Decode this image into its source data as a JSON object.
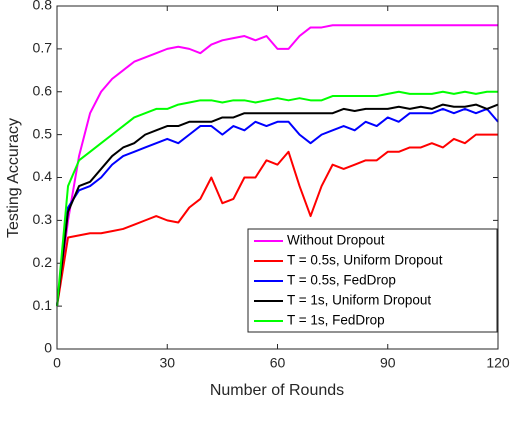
{
  "chart_data": {
    "type": "line",
    "xlabel": "Number of Rounds",
    "ylabel": "Testing Accuracy",
    "x": [
      0,
      3,
      6,
      9,
      12,
      15,
      18,
      21,
      24,
      27,
      30,
      33,
      36,
      39,
      42,
      45,
      48,
      51,
      54,
      57,
      60,
      63,
      66,
      69,
      72,
      75,
      78,
      81,
      84,
      87,
      90,
      93,
      96,
      99,
      102,
      105,
      108,
      111,
      114,
      117,
      120
    ],
    "series": [
      {
        "name": "Without Dropout",
        "color": "#ff00ff",
        "values": [
          0.1,
          0.3,
          0.45,
          0.55,
          0.6,
          0.63,
          0.65,
          0.67,
          0.68,
          0.69,
          0.7,
          0.705,
          0.7,
          0.69,
          0.71,
          0.72,
          0.725,
          0.73,
          0.72,
          0.73,
          0.7,
          0.7,
          0.73,
          0.75,
          0.75,
          0.755,
          0.755,
          0.755,
          0.755,
          0.755,
          0.755,
          0.755,
          0.755,
          0.755,
          0.755,
          0.755,
          0.755,
          0.755,
          0.755,
          0.755,
          0.755
        ]
      },
      {
        "name": "T = 0.5s, Uniform Dropout",
        "color": "#ff0000",
        "values": [
          0.1,
          0.26,
          0.265,
          0.27,
          0.27,
          0.275,
          0.28,
          0.29,
          0.3,
          0.31,
          0.3,
          0.295,
          0.33,
          0.35,
          0.4,
          0.34,
          0.35,
          0.4,
          0.4,
          0.44,
          0.43,
          0.46,
          0.38,
          0.31,
          0.38,
          0.43,
          0.42,
          0.43,
          0.44,
          0.44,
          0.46,
          0.46,
          0.47,
          0.47,
          0.48,
          0.47,
          0.49,
          0.48,
          0.5,
          0.5,
          0.5
        ]
      },
      {
        "name": "T = 0.5s, FedDrop",
        "color": "#0000ff",
        "values": [
          0.1,
          0.33,
          0.37,
          0.38,
          0.4,
          0.43,
          0.45,
          0.46,
          0.47,
          0.48,
          0.49,
          0.48,
          0.5,
          0.52,
          0.52,
          0.5,
          0.52,
          0.51,
          0.53,
          0.52,
          0.53,
          0.53,
          0.5,
          0.48,
          0.5,
          0.51,
          0.52,
          0.51,
          0.53,
          0.52,
          0.54,
          0.53,
          0.55,
          0.55,
          0.55,
          0.56,
          0.55,
          0.56,
          0.55,
          0.56,
          0.53
        ]
      },
      {
        "name": "T = 1s, Uniform Dropout",
        "color": "#000000",
        "values": [
          0.1,
          0.32,
          0.38,
          0.39,
          0.42,
          0.45,
          0.47,
          0.48,
          0.5,
          0.51,
          0.52,
          0.52,
          0.53,
          0.53,
          0.53,
          0.54,
          0.54,
          0.55,
          0.55,
          0.55,
          0.55,
          0.55,
          0.55,
          0.55,
          0.55,
          0.55,
          0.56,
          0.555,
          0.56,
          0.56,
          0.56,
          0.565,
          0.56,
          0.565,
          0.56,
          0.57,
          0.565,
          0.565,
          0.57,
          0.56,
          0.57
        ]
      },
      {
        "name": "T = 1s, FedDrop",
        "color": "#00ff00",
        "values": [
          0.1,
          0.38,
          0.44,
          0.46,
          0.48,
          0.5,
          0.52,
          0.54,
          0.55,
          0.56,
          0.56,
          0.57,
          0.575,
          0.58,
          0.58,
          0.575,
          0.58,
          0.58,
          0.575,
          0.58,
          0.585,
          0.58,
          0.585,
          0.58,
          0.58,
          0.59,
          0.59,
          0.59,
          0.59,
          0.59,
          0.595,
          0.6,
          0.595,
          0.595,
          0.595,
          0.6,
          0.595,
          0.6,
          0.595,
          0.6,
          0.6
        ]
      }
    ],
    "xlim": [
      0,
      120
    ],
    "xticks": [
      0,
      30,
      60,
      90,
      120
    ],
    "ylim": [
      0,
      0.8
    ],
    "yticks": [
      0,
      0.1,
      0.2,
      0.3,
      0.4,
      0.5,
      0.6,
      0.7,
      0.8
    ],
    "grid": false,
    "legend": "lower right"
  }
}
